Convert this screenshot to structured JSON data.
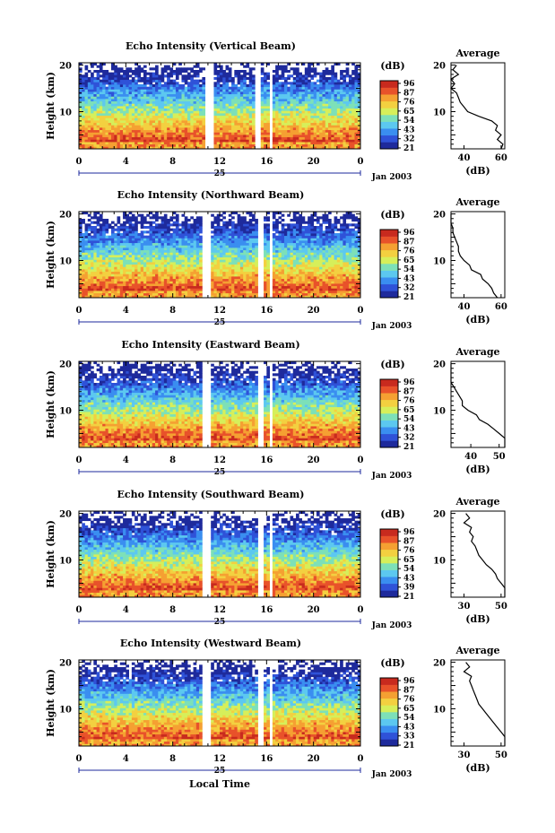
{
  "chart_data": [
    {
      "type": "heatmap",
      "title": "Echo Intensity (Vertical Beam)",
      "ylabel": "Height (km)",
      "yticks": [
        "20",
        "10"
      ],
      "xticks": [
        "0",
        "4",
        "8",
        "12",
        "16",
        "20",
        "0"
      ],
      "date_label": "25",
      "month_label": "Jan 2003",
      "colorbar_unit": "(dB)",
      "colorbar_ticks": [
        "96",
        "87",
        "76",
        "65",
        "54",
        "43",
        "32",
        "21"
      ],
      "data_gaps_local_time": [
        [
          10.7,
          11.3
        ],
        [
          15.0,
          15.4
        ],
        [
          16.1,
          16.4
        ]
      ],
      "profile": {
        "title": "Average",
        "xlabel": "(dB)",
        "xticks": [
          "40",
          "60"
        ],
        "yticks": [
          "20",
          "10"
        ],
        "heights": [
          20,
          19,
          18,
          17,
          16,
          15,
          14,
          13,
          12,
          11,
          10,
          9,
          8,
          7,
          6,
          5,
          4,
          3,
          2
        ],
        "values": [
          36,
          34,
          37,
          33,
          35,
          33,
          36,
          37,
          38,
          40,
          42,
          48,
          55,
          58,
          57,
          60,
          58,
          61,
          60
        ]
      }
    },
    {
      "type": "heatmap",
      "title": "Echo Intensity (Northward Beam)",
      "ylabel": "Height (km)",
      "yticks": [
        "20",
        "10"
      ],
      "xticks": [
        "0",
        "4",
        "8",
        "12",
        "16",
        "20",
        "0"
      ],
      "date_label": "25",
      "month_label": "Jan 2003",
      "colorbar_unit": "(dB)",
      "colorbar_ticks": [
        "96",
        "87",
        "76",
        "65",
        "54",
        "43",
        "32",
        "21"
      ],
      "data_gaps_local_time": [
        [
          10.5,
          11.2
        ],
        [
          15.2,
          15.6
        ],
        [
          16.1,
          16.5
        ]
      ],
      "profile": {
        "title": "Average",
        "xlabel": "(dB)",
        "xticks": [
          "40",
          "60"
        ],
        "yticks": [
          "20",
          "10"
        ],
        "heights": [
          20,
          19,
          18,
          17,
          16,
          15,
          14,
          13,
          12,
          11,
          10,
          9,
          8,
          7,
          6,
          5,
          4,
          3,
          2
        ],
        "values": [
          31,
          33,
          31,
          34,
          34,
          35,
          36,
          37,
          37,
          38,
          40,
          43,
          44,
          49,
          50,
          53,
          55,
          56,
          58
        ]
      }
    },
    {
      "type": "heatmap",
      "title": "Echo Intensity (Eastward Beam)",
      "ylabel": "Height (km)",
      "yticks": [
        "20",
        "10"
      ],
      "xticks": [
        "0",
        "4",
        "8",
        "12",
        "16",
        "20",
        "0"
      ],
      "date_label": "25",
      "month_label": "Jan 2003",
      "colorbar_unit": "(dB)",
      "colorbar_ticks": [
        "96",
        "87",
        "76",
        "65",
        "54",
        "43",
        "32",
        "21"
      ],
      "data_gaps_local_time": [
        [
          10.5,
          11.2
        ],
        [
          15.2,
          15.6
        ],
        [
          16.2,
          16.5
        ]
      ],
      "profile": {
        "title": "Average",
        "xlabel": "(dB)",
        "xticks": [
          "40",
          "50"
        ],
        "yticks": [
          "20",
          "10"
        ],
        "heights": [
          20,
          19,
          18,
          17,
          16,
          15,
          14,
          13,
          12,
          11,
          10,
          9,
          8,
          7,
          6,
          5,
          4,
          3,
          2
        ],
        "values": [
          30,
          32,
          30,
          33,
          33,
          34,
          35,
          36,
          37,
          37,
          39,
          42,
          43,
          46,
          48,
          50,
          52,
          53,
          55
        ]
      }
    },
    {
      "type": "heatmap",
      "title": "Echo Intensity (Southward Beam)",
      "ylabel": "Height (km)",
      "yticks": [
        "20",
        "10"
      ],
      "xticks": [
        "0",
        "4",
        "8",
        "12",
        "16",
        "20",
        "0"
      ],
      "date_label": "25",
      "month_label": "Jan 2003",
      "colorbar_unit": "(dB)",
      "colorbar_ticks": [
        "96",
        "87",
        "76",
        "65",
        "54",
        "43",
        "39",
        "21"
      ],
      "data_gaps_local_time": [
        [
          10.5,
          11.2
        ],
        [
          15.2,
          15.6
        ],
        [
          16.2,
          16.5
        ]
      ],
      "profile": {
        "title": "Average",
        "xlabel": "(dB)",
        "xticks": [
          "30",
          "50"
        ],
        "yticks": [
          "20",
          "10"
        ],
        "heights": [
          20,
          19,
          18,
          17,
          16,
          15,
          14,
          13,
          12,
          11,
          10,
          9,
          8,
          7,
          6,
          5,
          4,
          3,
          2
        ],
        "values": [
          31,
          33,
          30,
          34,
          33,
          35,
          34,
          36,
          37,
          38,
          40,
          42,
          45,
          47,
          48,
          50,
          52,
          54,
          55
        ]
      }
    },
    {
      "type": "heatmap",
      "title": "Echo Intensity (Westward Beam)",
      "ylabel": "Height (km)",
      "yticks": [
        "20",
        "10"
      ],
      "xticks": [
        "0",
        "4",
        "8",
        "12",
        "16",
        "20",
        "0"
      ],
      "date_label": "25",
      "month_label": "Jan 2003",
      "colorbar_unit": "(dB)",
      "colorbar_ticks": [
        "96",
        "87",
        "76",
        "65",
        "54",
        "43",
        "33",
        "21"
      ],
      "data_gaps_local_time": [
        [
          10.5,
          11.2
        ],
        [
          15.2,
          15.6
        ],
        [
          16.2,
          16.5
        ]
      ],
      "profile": {
        "title": "Average",
        "xlabel": "(dB)",
        "xticks": [
          "30",
          "50"
        ],
        "yticks": [
          "20",
          "10"
        ],
        "heights": [
          20,
          19,
          18,
          17,
          16,
          15,
          14,
          13,
          12,
          11,
          10,
          9,
          8,
          7,
          6,
          5,
          4,
          3,
          2
        ],
        "values": [
          31,
          33,
          30,
          34,
          33,
          34,
          35,
          36,
          37,
          38,
          40,
          42,
          44,
          46,
          48,
          50,
          52,
          54,
          55
        ]
      }
    }
  ],
  "footer": {
    "xlabel": "Local Time"
  },
  "palette": [
    "#1e2a9c",
    "#2f52d8",
    "#3a8ef0",
    "#5cc8f0",
    "#7de0b8",
    "#d6ef5a",
    "#f3d040",
    "#f5a032",
    "#e8522a",
    "#c82a1e"
  ]
}
